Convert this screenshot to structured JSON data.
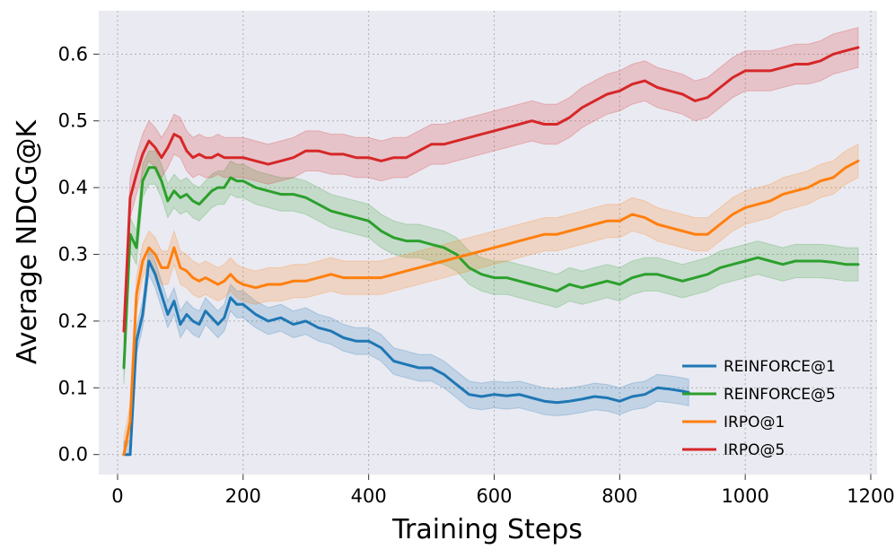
{
  "chart_data": {
    "type": "line",
    "title": "",
    "xlabel": "Training Steps",
    "ylabel": "Average NDCG@K",
    "xlim": [
      -30,
      1210
    ],
    "ylim": [
      -0.03,
      0.665
    ],
    "xticks": [
      0,
      200,
      400,
      600,
      800,
      1000,
      1200
    ],
    "xtick_labels": [
      "0",
      "200",
      "400",
      "600",
      "800",
      "1000",
      "1200"
    ],
    "yticks": [
      0.0,
      0.1,
      0.2,
      0.3,
      0.4,
      0.5,
      0.6
    ],
    "ytick_labels": [
      "0.0",
      "0.1",
      "0.2",
      "0.3",
      "0.4",
      "0.5",
      "0.6"
    ],
    "grid": true,
    "legend_position": "lower-right",
    "series": [
      {
        "name": "REINFORCE@1",
        "color": "#1f77b4",
        "band": 0.02,
        "x": [
          10,
          20,
          30,
          40,
          50,
          60,
          70,
          80,
          90,
          100,
          110,
          120,
          130,
          140,
          150,
          160,
          170,
          180,
          190,
          200,
          220,
          240,
          260,
          280,
          300,
          320,
          340,
          360,
          380,
          400,
          420,
          440,
          460,
          480,
          500,
          520,
          540,
          560,
          580,
          600,
          620,
          640,
          660,
          680,
          700,
          720,
          740,
          760,
          780,
          800,
          820,
          840,
          860,
          880,
          900,
          910
        ],
        "y": [
          0.0,
          0.0,
          0.17,
          0.21,
          0.29,
          0.27,
          0.24,
          0.21,
          0.23,
          0.195,
          0.21,
          0.2,
          0.195,
          0.215,
          0.205,
          0.195,
          0.205,
          0.235,
          0.225,
          0.225,
          0.21,
          0.2,
          0.205,
          0.195,
          0.2,
          0.19,
          0.185,
          0.175,
          0.17,
          0.17,
          0.16,
          0.14,
          0.135,
          0.13,
          0.13,
          0.12,
          0.105,
          0.09,
          0.087,
          0.09,
          0.088,
          0.09,
          0.085,
          0.08,
          0.078,
          0.08,
          0.083,
          0.087,
          0.085,
          0.08,
          0.087,
          0.09,
          0.1,
          0.098,
          0.095,
          0.093
        ]
      },
      {
        "name": "REINFORCE@5",
        "color": "#2ca02c",
        "band": 0.025,
        "x": [
          10,
          20,
          30,
          40,
          50,
          60,
          70,
          80,
          90,
          100,
          110,
          120,
          130,
          140,
          150,
          160,
          170,
          180,
          190,
          200,
          220,
          240,
          260,
          280,
          300,
          320,
          340,
          360,
          380,
          400,
          420,
          440,
          460,
          480,
          500,
          520,
          540,
          560,
          580,
          600,
          620,
          640,
          660,
          680,
          700,
          720,
          740,
          760,
          780,
          800,
          820,
          840,
          860,
          880,
          900,
          920,
          940,
          960,
          980,
          1000,
          1020,
          1040,
          1060,
          1080,
          1100,
          1120,
          1140,
          1160,
          1180
        ],
        "y": [
          0.13,
          0.33,
          0.31,
          0.41,
          0.43,
          0.43,
          0.41,
          0.38,
          0.395,
          0.385,
          0.39,
          0.38,
          0.375,
          0.385,
          0.395,
          0.4,
          0.4,
          0.415,
          0.41,
          0.41,
          0.4,
          0.395,
          0.39,
          0.39,
          0.385,
          0.375,
          0.365,
          0.36,
          0.355,
          0.35,
          0.335,
          0.325,
          0.32,
          0.32,
          0.315,
          0.31,
          0.3,
          0.28,
          0.27,
          0.265,
          0.265,
          0.26,
          0.255,
          0.25,
          0.245,
          0.255,
          0.25,
          0.255,
          0.26,
          0.255,
          0.265,
          0.27,
          0.27,
          0.265,
          0.26,
          0.265,
          0.27,
          0.28,
          0.285,
          0.29,
          0.295,
          0.29,
          0.285,
          0.29,
          0.29,
          0.29,
          0.288,
          0.285,
          0.285
        ]
      },
      {
        "name": "IRPO@1",
        "color": "#ff7f0e",
        "band": 0.025,
        "x": [
          10,
          20,
          30,
          40,
          50,
          60,
          70,
          80,
          90,
          100,
          110,
          120,
          130,
          140,
          150,
          160,
          170,
          180,
          190,
          200,
          220,
          240,
          260,
          280,
          300,
          320,
          340,
          360,
          380,
          400,
          420,
          440,
          460,
          480,
          500,
          520,
          540,
          560,
          580,
          600,
          620,
          640,
          660,
          680,
          700,
          720,
          740,
          760,
          780,
          800,
          820,
          840,
          860,
          880,
          900,
          920,
          940,
          960,
          980,
          1000,
          1020,
          1040,
          1060,
          1080,
          1100,
          1120,
          1140,
          1160,
          1180
        ],
        "y": [
          0.0,
          0.05,
          0.24,
          0.29,
          0.31,
          0.3,
          0.28,
          0.28,
          0.31,
          0.28,
          0.275,
          0.265,
          0.26,
          0.265,
          0.26,
          0.255,
          0.26,
          0.27,
          0.26,
          0.255,
          0.25,
          0.255,
          0.255,
          0.26,
          0.26,
          0.265,
          0.27,
          0.265,
          0.265,
          0.265,
          0.265,
          0.27,
          0.275,
          0.28,
          0.285,
          0.29,
          0.295,
          0.3,
          0.305,
          0.31,
          0.315,
          0.32,
          0.325,
          0.33,
          0.33,
          0.335,
          0.34,
          0.345,
          0.35,
          0.35,
          0.36,
          0.355,
          0.345,
          0.34,
          0.335,
          0.33,
          0.33,
          0.345,
          0.36,
          0.37,
          0.375,
          0.38,
          0.39,
          0.395,
          0.4,
          0.41,
          0.415,
          0.43,
          0.44
        ]
      },
      {
        "name": "IRPO@5",
        "color": "#d62728",
        "band": 0.03,
        "x": [
          10,
          20,
          30,
          40,
          50,
          60,
          70,
          80,
          90,
          100,
          110,
          120,
          130,
          140,
          150,
          160,
          170,
          180,
          190,
          200,
          220,
          240,
          260,
          280,
          300,
          320,
          340,
          360,
          380,
          400,
          420,
          440,
          460,
          480,
          500,
          520,
          540,
          560,
          580,
          600,
          620,
          640,
          660,
          680,
          700,
          720,
          740,
          760,
          780,
          800,
          820,
          840,
          860,
          880,
          900,
          920,
          940,
          960,
          980,
          1000,
          1020,
          1040,
          1060,
          1080,
          1100,
          1120,
          1140,
          1160,
          1180
        ],
        "y": [
          0.185,
          0.385,
          0.42,
          0.45,
          0.47,
          0.46,
          0.445,
          0.46,
          0.48,
          0.475,
          0.455,
          0.445,
          0.45,
          0.445,
          0.445,
          0.45,
          0.445,
          0.445,
          0.445,
          0.445,
          0.44,
          0.435,
          0.44,
          0.445,
          0.455,
          0.455,
          0.45,
          0.45,
          0.445,
          0.445,
          0.44,
          0.445,
          0.445,
          0.455,
          0.465,
          0.465,
          0.47,
          0.475,
          0.48,
          0.485,
          0.49,
          0.495,
          0.5,
          0.495,
          0.495,
          0.505,
          0.52,
          0.53,
          0.54,
          0.545,
          0.555,
          0.56,
          0.55,
          0.545,
          0.54,
          0.53,
          0.535,
          0.55,
          0.565,
          0.575,
          0.575,
          0.575,
          0.58,
          0.585,
          0.585,
          0.59,
          0.6,
          0.605,
          0.61
        ]
      }
    ]
  }
}
